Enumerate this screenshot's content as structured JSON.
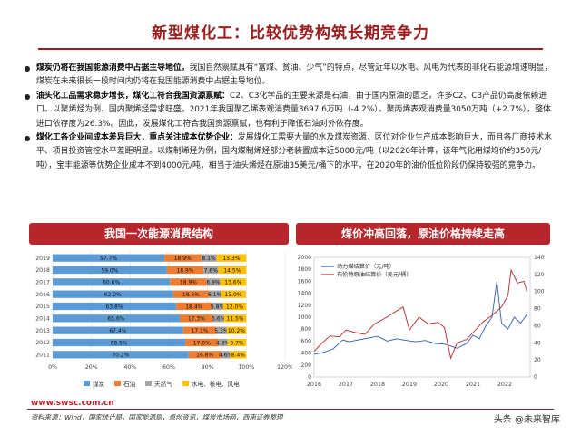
{
  "title": "新型煤化工：比较优势构筑长期竞争力",
  "bullets": [
    {
      "lead": "煤炭仍将在我国能源消费中占据主导地位。",
      "text": "我国自然禀赋具有“富煤、贫油、少气”的特点，尽管近年以水电、风电为代表的非化石能源增速明显，煤炭在未来很长一段时间内仍将在我国能源消费中占据主导地位。"
    },
    {
      "lead": "油头化工品需求稳步增长，煤化工符合我国资源禀赋：",
      "text": "C2、C3化学品的主要来源是石油，由于国内原油的匮乏，许多C2、C3产品仍高度依赖进口。以聚烯烃为例，国内聚烯烃需求旺盛，2021年我国聚乙烯表观消费量3697.6万吨（-4.2%），聚丙烯表观消费量3050万吨（+2.7%），整体进口依存度为26.3%。因此，发展煤化工符合我国资源禀赋，也有利于降低石油对外依存度。"
    },
    {
      "lead": "煤化工各企业间成本差异巨大，重点关注成本优势企业：",
      "text": "发展煤化工需要大量的水及煤炭资源，区位对企业生产成本影响巨大，而且各厂商技术水平、项目投资管控水平差距明显。以煤制烯烃为例，国内煤制烯烃部分老装置成本近5000元/吨（以2020年计算，该年气化用煤均价约350元/吨），宝丰能源等优势企业成本不到4000元/吨，相当于油头烯烃在原油35美元/桶下的水平，在2020年的油价低位阶段仍保持较强的竞争力。"
    }
  ],
  "left_panel_title": "我国一次能源消费结构",
  "right_panel_title": "煤价冲高回落，原油价格持续走高",
  "footer_url": "www.swsc.com.cn",
  "footer_source": "资料来源：Wind，国家统计局，国家能源局，卓创资讯，煤炭市场网，西南证券整理",
  "watermark": "头条 @未来智库",
  "colors": {
    "coal": "#5b9bd5",
    "oil": "#ed7d31",
    "gas": "#a5a5a5",
    "hydro": "#ffc000",
    "accent": "#b7262a"
  },
  "chart_data": [
    {
      "type": "bar",
      "stacked": true,
      "orientation": "horizontal",
      "categories": [
        "2019",
        "2018",
        "2017",
        "2016",
        "2015",
        "2014",
        "2013",
        "2012",
        "2011"
      ],
      "series": [
        {
          "name": "煤炭",
          "values": [
            57.7,
            59.0,
            60.6,
            62.2,
            63.8,
            65.6,
            67.4,
            68.5,
            70.2
          ]
        },
        {
          "name": "石油",
          "values": [
            18.9,
            18.9,
            18.9,
            18.5,
            18.4,
            17.3,
            17.1,
            17.0,
            16.8
          ]
        },
        {
          "name": "天然气",
          "values": [
            8.1,
            7.6,
            6.9,
            6.1,
            5.8,
            5.6,
            5.3,
            4.8,
            4.6
          ]
        },
        {
          "name": "水电、核电、风电",
          "values": [
            15.3,
            14.5,
            13.6,
            13.0,
            12.0,
            11.5,
            10.2,
            9.7,
            8.4
          ]
        }
      ],
      "xticks": [
        "0%",
        "20%",
        "40%",
        "60%",
        "80%",
        "100%",
        "120%"
      ],
      "xlim": [
        0,
        120
      ],
      "legend_position": "bottom"
    },
    {
      "type": "line",
      "series": [
        {
          "name": "动力煤结算价（元/吨）",
          "axis": "left",
          "color": "#2e5aa8",
          "x": [
            2016,
            2016.3,
            2016.6,
            2016.9,
            2017.1,
            2017.4,
            2017.7,
            2018,
            2018.3,
            2018.6,
            2018.9,
            2019.2,
            2019.5,
            2019.8,
            2020.1,
            2020.3,
            2020.5,
            2020.8,
            2021,
            2021.2,
            2021.4,
            2021.6,
            2021.75,
            2021.9,
            2022.1,
            2022.3,
            2022.5,
            2022.7
          ],
          "y": [
            380,
            410,
            470,
            620,
            590,
            620,
            650,
            680,
            600,
            640,
            610,
            590,
            610,
            560,
            550,
            520,
            480,
            560,
            700,
            640,
            850,
            1000,
            1600,
            900,
            800,
            1000,
            900,
            1050
          ]
        },
        {
          "name": "布伦特原油结算价（美元/桶）",
          "axis": "right",
          "color": "#b7262a",
          "x": [
            2016,
            2016.2,
            2016.5,
            2016.8,
            2017,
            2017.3,
            2017.6,
            2017.9,
            2018.2,
            2018.5,
            2018.8,
            2019,
            2019.3,
            2019.6,
            2019.9,
            2020.1,
            2020.3,
            2020.5,
            2020.8,
            2021,
            2021.3,
            2021.6,
            2021.9,
            2022.1,
            2022.2,
            2022.4,
            2022.6,
            2022.7
          ],
          "y": [
            30,
            38,
            48,
            47,
            55,
            52,
            50,
            62,
            68,
            75,
            82,
            55,
            70,
            62,
            64,
            58,
            22,
            40,
            44,
            52,
            64,
            72,
            82,
            95,
            125,
            110,
            112,
            100
          ]
        }
      ],
      "yleft_ticks": [
        "0",
        "200",
        "400",
        "600",
        "800",
        "1000",
        "1200",
        "1400",
        "1600",
        "1800",
        "2000"
      ],
      "yleft_lim": [
        0,
        2000
      ],
      "yright_ticks": [
        "0",
        "20",
        "40",
        "60",
        "80",
        "100",
        "120",
        "140"
      ],
      "yright_lim": [
        0,
        140
      ],
      "xticks": [
        "2016",
        "2017",
        "2018",
        "2019",
        "2020",
        "2021",
        "2022"
      ],
      "xlim": [
        2016,
        2022.8
      ],
      "legend_position": "top-left"
    }
  ]
}
